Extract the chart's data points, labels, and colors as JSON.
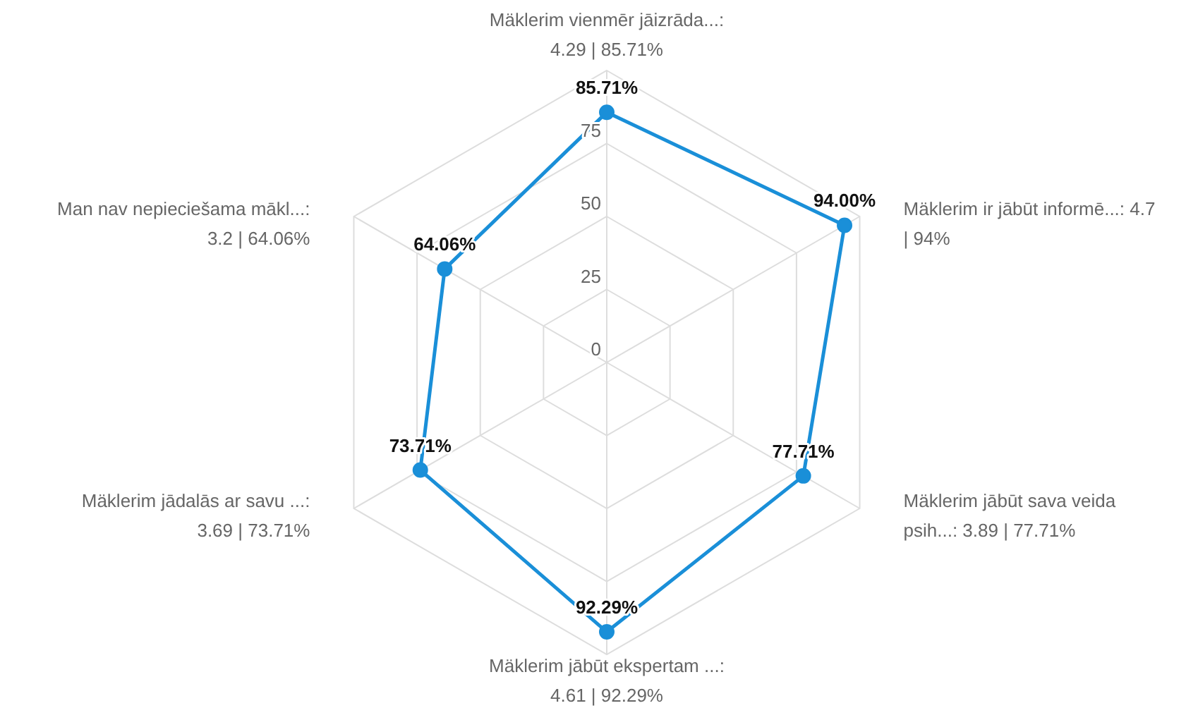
{
  "chart_data": {
    "type": "radar",
    "categories": [
      "Mäklerim vienmēr jāizrāda...:\n4.29 | 85.71%",
      "Mäklerim ir jābūt informē...: 4.7\n| 94%",
      "Mäklerim jābūt sava veida\npsih...: 3.89 | 77.71%",
      "Mäklerim jābūt ekspertam ...:\n4.61 | 92.29%",
      "Mäklerim jādalās ar savu ...:\n3.69 | 73.71%",
      "Man nav nepieciešama mākl...:\n3.2 | 64.06%"
    ],
    "series": [
      {
        "color": "#1a8fd8",
        "values": [
          85.71,
          94,
          77.71,
          92.29,
          73.71,
          64.06
        ],
        "value_labels": [
          "85.71%",
          "94.00%",
          "77.71%",
          "92.29%",
          "73.71%",
          "64.06%"
        ]
      }
    ],
    "ylim": [
      0,
      100
    ],
    "yticks": [
      0,
      25,
      50,
      75
    ],
    "grid": true,
    "marker": "circle",
    "line_style": "solid"
  }
}
